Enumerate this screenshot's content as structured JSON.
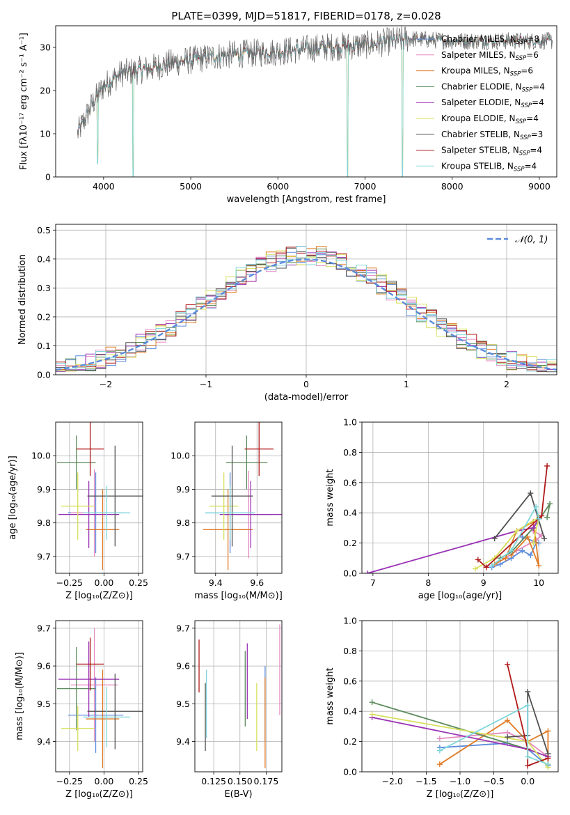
{
  "colors": {
    "chabrier_miles": "#5b8bdc",
    "salpeter_miles": "#e58ac0",
    "kroupa_miles": "#e07b27",
    "chabrier_elodie": "#5a8a5a",
    "salpeter_elodie": "#9a32b4",
    "kroupa_elodie": "#d7df5a",
    "chabrier_stelib": "#505050",
    "salpeter_stelib": "#b01818",
    "kroupa_stelib": "#7fd6dc",
    "normal_curve": "#5b8bdc",
    "grid": "#b0b0b0"
  },
  "chart_data": [
    {
      "id": "spectrum",
      "type": "line",
      "title": "PLATE=0399, MJD=51817, FIBERID=0178, z=0.028",
      "xlabel": "wavelength [Angstrom, rest frame]",
      "ylabel": "Flux [fλ10⁻¹⁷ erg cm⁻² s⁻¹ A⁻¹]",
      "xlim": [
        3450,
        9200
      ],
      "ylim": [
        0,
        35
      ],
      "xticks": [
        "4000",
        "5000",
        "6000",
        "7000",
        "8000",
        "9000"
      ],
      "yticks": [
        "0",
        "10",
        "20",
        "30"
      ],
      "legend_position": "right",
      "legend": [
        "Chabrier MILES, N_SSP=8",
        "Salpeter MILES, N_SSP=6",
        "Kroupa MILES, N_SSP=6",
        "Chabrier ELODIE, N_SSP=4",
        "Salpeter ELODIE, N_SSP=4",
        "Kroupa ELODIE, N_SSP=4",
        "Chabrier STELIB, N_SSP=3",
        "Salpeter STELIB, N_SSP=4",
        "Kroupa STELIB, N_SSP=4"
      ],
      "continuum": [
        [
          3700,
          10
        ],
        [
          3800,
          14
        ],
        [
          3900,
          18
        ],
        [
          4000,
          21
        ],
        [
          4200,
          24
        ],
        [
          4500,
          25
        ],
        [
          4800,
          26.5
        ],
        [
          5000,
          27
        ],
        [
          5300,
          28
        ],
        [
          5600,
          28.5
        ],
        [
          6000,
          29
        ],
        [
          6500,
          30
        ],
        [
          7000,
          30.5
        ],
        [
          7500,
          32
        ],
        [
          8000,
          31.5
        ],
        [
          8500,
          31.5
        ],
        [
          9000,
          31.5
        ],
        [
          9150,
          31.5
        ]
      ],
      "dips": [
        [
          3930,
          3
        ],
        [
          4340,
          0
        ],
        [
          6800,
          0
        ],
        [
          7430,
          0
        ]
      ]
    },
    {
      "id": "residuals",
      "type": "histogram",
      "xlabel": "(data-model)/error",
      "ylabel": "Normed distribution",
      "xlim": [
        -2.5,
        2.5
      ],
      "ylim": [
        0,
        0.52
      ],
      "xticks": [
        "−2",
        "−1",
        "0",
        "1",
        "2"
      ],
      "yticks": [
        "0.0",
        "0.1",
        "0.2",
        "0.3",
        "0.4",
        "0.5"
      ],
      "legend": [
        "𝒩(0, 1)"
      ],
      "legend_position": "upper right",
      "bin_width": 0.1
    },
    {
      "id": "age-vs-Z",
      "type": "scatter",
      "xlabel": "Z [log₁₀(Z/Z⊙)]",
      "ylabel": "age  [log₁₀(age/yr)]",
      "xlim": [
        -0.35,
        0.28
      ],
      "ylim": [
        9.65,
        10.1
      ],
      "xticks": [
        "−0.25",
        "0.00",
        "0.25"
      ],
      "yticks": [
        "9.7",
        "9.8",
        "9.9",
        "10.0"
      ],
      "points": [
        {
          "x": -0.06,
          "xerr": 0.2,
          "y": 9.83,
          "yerr": 0.12
        },
        {
          "x": -0.07,
          "xerr": 0.17,
          "y": 9.83,
          "yerr": 0.13
        },
        {
          "x": -0.01,
          "xerr": 0.12,
          "y": 9.78,
          "yerr": 0.12
        },
        {
          "x": -0.2,
          "xerr": 0.14,
          "y": 9.98,
          "yerr": 0.08
        },
        {
          "x": -0.11,
          "xerr": 0.22,
          "y": 9.825,
          "yerr": 0.1
        },
        {
          "x": -0.19,
          "xerr": 0.12,
          "y": 9.85,
          "yerr": 0.1
        },
        {
          "x": 0.08,
          "xerr": 0.2,
          "y": 9.88,
          "yerr": 0.15
        },
        {
          "x": -0.1,
          "xerr": 0.1,
          "y": 10.02,
          "yerr": 0.08
        },
        {
          "x": 0.02,
          "xerr": 0.17,
          "y": 9.83,
          "yerr": 0.08
        }
      ]
    },
    {
      "id": "age-vs-mass",
      "type": "scatter",
      "xlabel": "mass [log₁₀(M/M⊙)]",
      "ylabel": "",
      "xlim": [
        9.3,
        9.72
      ],
      "ylim": [
        9.65,
        10.1
      ],
      "xticks": [
        "9.4",
        "9.6"
      ],
      "yticks": [
        "9.7",
        "9.8",
        "9.9",
        "10.0"
      ],
      "points": [
        {
          "x": 9.47,
          "xerr": 0.12,
          "y": 9.83,
          "yerr": 0.12
        },
        {
          "x": 9.56,
          "xerr": 0.12,
          "y": 9.825,
          "yerr": 0.13
        },
        {
          "x": 9.46,
          "xerr": 0.12,
          "y": 9.78,
          "yerr": 0.12
        },
        {
          "x": 9.55,
          "xerr": 0.1,
          "y": 9.98,
          "yerr": 0.08
        },
        {
          "x": 9.57,
          "xerr": 0.15,
          "y": 9.825,
          "yerr": 0.1
        },
        {
          "x": 9.44,
          "xerr": 0.07,
          "y": 9.85,
          "yerr": 0.1
        },
        {
          "x": 9.48,
          "xerr": 0.1,
          "y": 9.88,
          "yerr": 0.15
        },
        {
          "x": 9.61,
          "xerr": 0.07,
          "y": 10.02,
          "yerr": 0.08
        },
        {
          "x": 9.47,
          "xerr": 0.12,
          "y": 9.83,
          "yerr": 0.08
        }
      ]
    },
    {
      "id": "weight-vs-age",
      "type": "line",
      "xlabel": "age  [log₁₀(age/yr)]",
      "ylabel": "mass weight",
      "xlim": [
        6.8,
        10.35
      ],
      "ylim": [
        0,
        1
      ],
      "xticks": [
        "7",
        "8",
        "9",
        "10"
      ],
      "yticks": [
        "0.0",
        "0.2",
        "0.4",
        "0.6",
        "0.8",
        "1.0"
      ],
      "series": [
        {
          "color_key": "chabrier_miles",
          "x": [
            9.15,
            9.3,
            9.5,
            9.7,
            9.85,
            9.95,
            10.0,
            9.7
          ],
          "y": [
            0.04,
            0.06,
            0.1,
            0.15,
            0.12,
            0.2,
            0.2,
            0.24
          ]
        },
        {
          "color_key": "salpeter_miles",
          "x": [
            9.4,
            9.6,
            9.95,
            10.05,
            9.9
          ],
          "y": [
            0.1,
            0.15,
            0.22,
            0.25,
            0.28
          ]
        },
        {
          "color_key": "kroupa_miles",
          "x": [
            9.2,
            9.4,
            9.6,
            9.9,
            9.95,
            10.0,
            9.8,
            9.5
          ],
          "y": [
            0.06,
            0.1,
            0.28,
            0.34,
            0.2,
            0.05,
            0.24,
            0.12
          ]
        },
        {
          "color_key": "chabrier_elodie",
          "x": [
            9.3,
            9.5,
            9.9,
            10.2,
            10.15
          ],
          "y": [
            0.1,
            0.14,
            0.3,
            0.46,
            0.37
          ]
        },
        {
          "color_key": "salpeter_elodie",
          "x": [
            6.9,
            9.6,
            9.9,
            10.0
          ],
          "y": [
            0.0,
            0.28,
            0.3,
            0.36
          ]
        },
        {
          "color_key": "kroupa_elodie",
          "x": [
            8.85,
            9.2,
            9.6,
            10.0,
            9.9
          ],
          "y": [
            0.03,
            0.1,
            0.28,
            0.37,
            0.2
          ]
        },
        {
          "color_key": "chabrier_stelib",
          "x": [
            9.2,
            9.85,
            10.1
          ],
          "y": [
            0.23,
            0.53,
            0.23
          ]
        },
        {
          "color_key": "salpeter_stelib",
          "x": [
            8.9,
            9.05,
            10.05,
            10.15
          ],
          "y": [
            0.09,
            0.04,
            0.38,
            0.71
          ]
        },
        {
          "color_key": "kroupa_stelib",
          "x": [
            9.15,
            9.5,
            9.95,
            10.0
          ],
          "y": [
            0.05,
            0.15,
            0.44,
            0.36
          ]
        }
      ]
    },
    {
      "id": "mass-vs-Z",
      "type": "scatter",
      "xlabel": "Z [log₁₀(Z/Z⊙)]",
      "ylabel": "mass [log₁₀(M/M⊙)]",
      "xlim": [
        -0.35,
        0.28
      ],
      "ylim": [
        9.32,
        9.72
      ],
      "xticks": [
        "−0.25",
        "0.00",
        "0.25"
      ],
      "yticks": [
        "9.4",
        "9.5",
        "9.6",
        "9.7"
      ],
      "points": [
        {
          "x": -0.06,
          "xerr": 0.2,
          "y": 9.47,
          "yerr": 0.1
        },
        {
          "x": -0.07,
          "xerr": 0.17,
          "y": 9.55,
          "yerr": 0.15
        },
        {
          "x": -0.01,
          "xerr": 0.12,
          "y": 9.46,
          "yerr": 0.13
        },
        {
          "x": -0.2,
          "xerr": 0.14,
          "y": 9.54,
          "yerr": 0.11
        },
        {
          "x": -0.11,
          "xerr": 0.22,
          "y": 9.565,
          "yerr": 0.1
        },
        {
          "x": -0.19,
          "xerr": 0.12,
          "y": 9.435,
          "yerr": 0.06
        },
        {
          "x": 0.08,
          "xerr": 0.2,
          "y": 9.48,
          "yerr": 0.1
        },
        {
          "x": -0.1,
          "xerr": 0.1,
          "y": 9.605,
          "yerr": 0.07
        },
        {
          "x": 0.02,
          "xerr": 0.17,
          "y": 9.465,
          "yerr": 0.08
        }
      ]
    },
    {
      "id": "mass-vs-ebv",
      "type": "scatter",
      "xlabel": "E(B-V)",
      "ylabel": "",
      "xlim": [
        0.107,
        0.19
      ],
      "ylim": [
        9.32,
        9.72
      ],
      "xticks": [
        "0.125",
        "0.150",
        "0.175"
      ],
      "yticks": [
        "9.4",
        "9.5",
        "9.6",
        "9.7"
      ],
      "points": [
        {
          "x": 0.174,
          "y": 9.5,
          "yerr": 0.1
        },
        {
          "x": 0.188,
          "y": 9.59,
          "yerr": 0.12
        },
        {
          "x": 0.174,
          "y": 9.45,
          "yerr": 0.12
        },
        {
          "x": 0.155,
          "y": 9.54,
          "yerr": 0.1
        },
        {
          "x": 0.157,
          "y": 9.56,
          "yerr": 0.1
        },
        {
          "x": 0.166,
          "y": 9.465,
          "yerr": 0.09
        },
        {
          "x": 0.117,
          "y": 9.465,
          "yerr": 0.09
        },
        {
          "x": 0.111,
          "y": 9.6,
          "yerr": 0.07
        },
        {
          "x": 0.118,
          "y": 9.5,
          "yerr": 0.09
        }
      ]
    },
    {
      "id": "weight-vs-Z",
      "type": "line",
      "xlabel": "Z [log₁₀(Z/Z⊙)]",
      "ylabel": "mass weight",
      "xlim": [
        -2.45,
        0.45
      ],
      "ylim": [
        0,
        1
      ],
      "xticks": [
        "−2.0",
        "−1.5",
        "−1.0",
        "−0.5",
        "0.0"
      ],
      "yticks": [
        "0.0",
        "0.2",
        "0.4",
        "0.6",
        "0.8",
        "1.0"
      ],
      "series": [
        {
          "color_key": "chabrier_miles",
          "x": [
            -1.3,
            -0.3,
            0.0,
            0.3
          ],
          "y": [
            0.16,
            0.19,
            0.15,
            0.04
          ]
        },
        {
          "color_key": "salpeter_miles",
          "x": [
            -1.3,
            -0.3,
            0.0,
            0.3
          ],
          "y": [
            0.22,
            0.26,
            0.2,
            0.1
          ]
        },
        {
          "color_key": "kroupa_miles",
          "x": [
            -1.3,
            -0.3,
            0.0,
            0.3,
            0.3
          ],
          "y": [
            0.05,
            0.34,
            0.2,
            0.27,
            0.05
          ]
        },
        {
          "color_key": "chabrier_elodie",
          "x": [
            -2.3,
            0.0,
            0.3
          ],
          "y": [
            0.46,
            0.15,
            0.1
          ]
        },
        {
          "color_key": "salpeter_elodie",
          "x": [
            -2.3,
            0.0,
            0.3
          ],
          "y": [
            0.36,
            0.15,
            0.1
          ]
        },
        {
          "color_key": "kroupa_elodie",
          "x": [
            -2.3,
            0.0,
            0.3
          ],
          "y": [
            0.38,
            0.2,
            0.03
          ]
        },
        {
          "color_key": "chabrier_stelib",
          "x": [
            -0.3,
            0.0,
            0.0,
            0.3
          ],
          "y": [
            0.23,
            0.24,
            0.53,
            0.12
          ]
        },
        {
          "color_key": "salpeter_stelib",
          "x": [
            -0.3,
            0.0,
            0.0,
            0.3
          ],
          "y": [
            0.71,
            0.15,
            0.04,
            0.09
          ]
        },
        {
          "color_key": "kroupa_stelib",
          "x": [
            -1.3,
            0.0,
            0.0,
            0.3
          ],
          "y": [
            0.14,
            0.44,
            0.1,
            0.05
          ]
        }
      ]
    }
  ]
}
